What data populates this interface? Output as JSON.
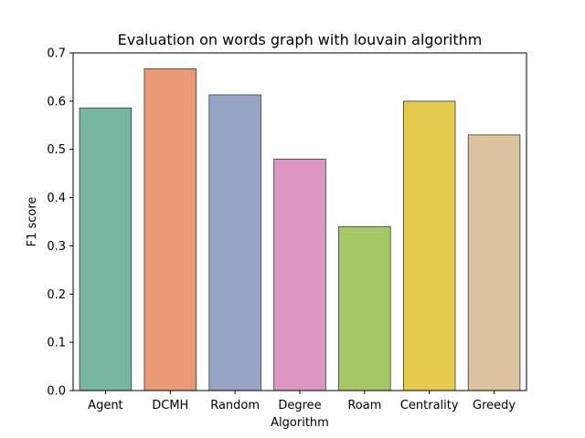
{
  "chart_data": {
    "type": "bar",
    "title": "Evaluation on words graph with louvain algorithm",
    "xlabel": "Algorithm",
    "ylabel": "F1 score",
    "categories": [
      "Agent",
      "DCMH",
      "Random",
      "Degree",
      "Roam",
      "Centrality",
      "Greedy"
    ],
    "values": [
      0.586,
      0.667,
      0.613,
      0.48,
      0.34,
      0.6,
      0.53
    ],
    "colors": [
      "#76b5a0",
      "#ea9a77",
      "#96a5c5",
      "#dd95c1",
      "#a4c866",
      "#e5c94a",
      "#dcc39f"
    ],
    "ylim": [
      0,
      0.7
    ],
    "yticks": [
      "0.0",
      "0.1",
      "0.2",
      "0.3",
      "0.4",
      "0.5",
      "0.6",
      "0.7"
    ],
    "grid": false,
    "legend": "none"
  }
}
